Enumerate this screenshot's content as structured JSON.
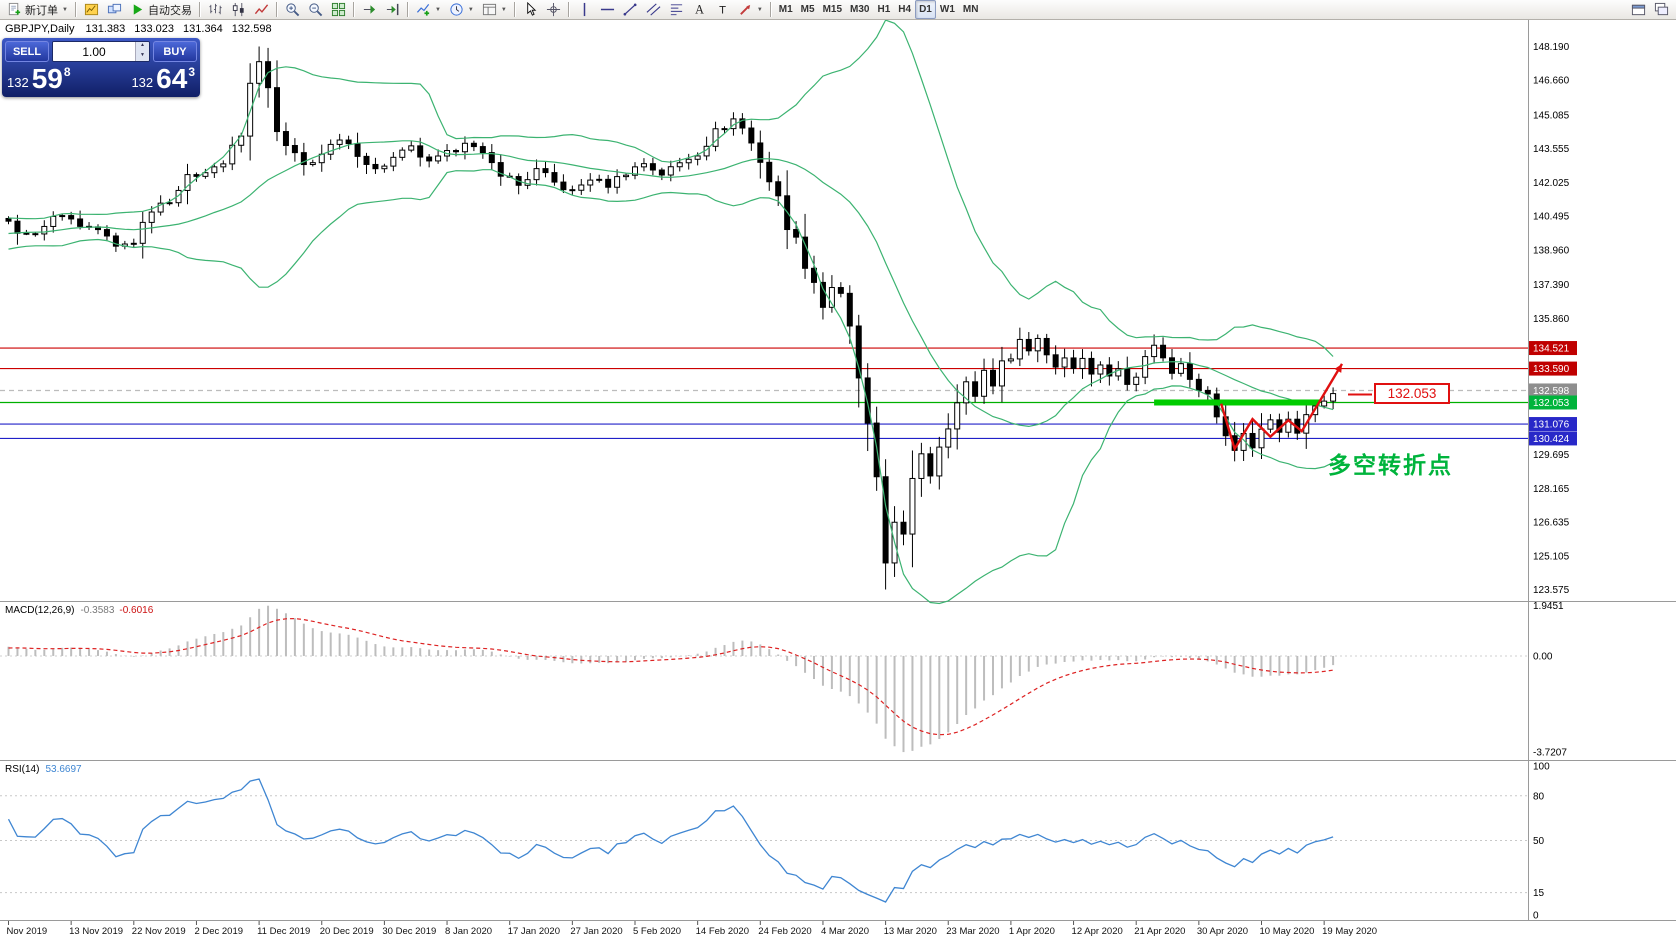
{
  "toolbar": {
    "groups": [
      {
        "items": [
          {
            "name": "new-order-button",
            "icon": "new-order-icon",
            "label": "新订单",
            "caret": true
          }
        ]
      },
      {
        "items": [
          {
            "name": "new-chart-button",
            "icon": "new-chart-icon"
          },
          {
            "name": "profiles-button",
            "icon": "profiles-icon"
          },
          {
            "name": "auto-trading-button",
            "icon": "play-icon",
            "label": "自动交易"
          }
        ]
      },
      {
        "items": [
          {
            "name": "bar-chart-button",
            "icon": "bar-chart-icon"
          },
          {
            "name": "candlestick-chart-button",
            "icon": "candlestick-icon"
          },
          {
            "name": "line-chart-button",
            "icon": "line-chart-icon"
          }
        ]
      },
      {
        "items": [
          {
            "name": "zoom-in-button",
            "icon": "zoom-in-icon"
          },
          {
            "name": "zoom-out-button",
            "icon": "zoom-out-icon"
          },
          {
            "name": "tile-windows-button",
            "icon": "tile-windows-icon"
          }
        ]
      },
      {
        "items": [
          {
            "name": "auto-scroll-button",
            "icon": "auto-scroll-icon"
          },
          {
            "name": "chart-shift-button",
            "icon": "chart-shift-icon"
          }
        ]
      },
      {
        "items": [
          {
            "name": "indicators-button",
            "icon": "indicators-icon",
            "caret": true
          },
          {
            "name": "periods-button",
            "icon": "periods-icon",
            "caret": true
          },
          {
            "name": "templates-button",
            "icon": "templates-icon",
            "caret": true
          }
        ]
      },
      {
        "items": [
          {
            "name": "cursor-button",
            "icon": "cursor-icon"
          },
          {
            "name": "crosshair-button",
            "icon": "crosshair-icon"
          }
        ]
      },
      {
        "items": [
          {
            "name": "vertical-line-button",
            "icon": "vertical-line-icon"
          },
          {
            "name": "horizontal-line-button",
            "icon": "horizontal-line-icon"
          },
          {
            "name": "trendline-button",
            "icon": "trendline-icon"
          },
          {
            "name": "channel-button",
            "icon": "channel-icon"
          },
          {
            "name": "fibonacci-button",
            "icon": "fibonacci-icon"
          },
          {
            "name": "text-button",
            "icon": "text-icon"
          },
          {
            "name": "label-button",
            "icon": "label-icon"
          },
          {
            "name": "arrows-button",
            "icon": "arrows-icon",
            "caret": true
          }
        ]
      },
      {
        "items": [
          {
            "name": "tf-m1-button",
            "label": "M1",
            "tf": true
          },
          {
            "name": "tf-m5-button",
            "label": "M5",
            "tf": true
          },
          {
            "name": "tf-m15-button",
            "label": "M15",
            "tf": true
          },
          {
            "name": "tf-m30-button",
            "label": "M30",
            "tf": true
          },
          {
            "name": "tf-h1-button",
            "label": "H1",
            "tf": true
          },
          {
            "name": "tf-h4-button",
            "label": "H4",
            "tf": true
          },
          {
            "name": "tf-d1-button",
            "label": "D1",
            "tf": true,
            "active": true
          },
          {
            "name": "tf-w1-button",
            "label": "W1",
            "tf": true
          },
          {
            "name": "tf-mn-button",
            "label": "MN",
            "tf": true
          }
        ]
      }
    ],
    "right_items": [
      {
        "name": "new-window-button",
        "icon": "new-window-icon"
      },
      {
        "name": "window-list-button",
        "icon": "window-list-icon"
      }
    ]
  },
  "info_line": {
    "symbol": "GBPJPY,Daily",
    "open": "131.383",
    "high": "133.023",
    "low": "131.364",
    "close": "132.598"
  },
  "one_click": {
    "sell_label": "SELL",
    "buy_label": "BUY",
    "volume": "1.00",
    "sell_price": {
      "small": "132",
      "big": "59",
      "sup": "8"
    },
    "buy_price": {
      "small": "132",
      "big": "64",
      "sup": "3"
    }
  },
  "price_axis": {
    "labels": [
      "148.190",
      "146.660",
      "145.085",
      "143.555",
      "142.025",
      "140.495",
      "138.960",
      "137.390",
      "135.860",
      "129.695",
      "128.165",
      "126.635",
      "125.105",
      "123.575"
    ],
    "markers": [
      {
        "text": "134.521",
        "color": "#c00000"
      },
      {
        "text": "133.590",
        "color": "#c00000"
      },
      {
        "text": "132.598",
        "color": "#8e8e8e"
      },
      {
        "text": "132.053",
        "color": "#00b43c"
      },
      {
        "text": "131.076",
        "color": "#2828c8"
      },
      {
        "text": "130.424",
        "color": "#2828c8"
      }
    ]
  },
  "levels": {
    "hlines": [
      {
        "price": 134.521,
        "color": "#cc0000",
        "dash": false
      },
      {
        "price": 133.59,
        "color": "#cc0000",
        "dash": false
      },
      {
        "price": 132.598,
        "color": "#bcbcbc",
        "dash": true
      },
      {
        "price": 132.053,
        "color": "#00b000",
        "dash": false
      },
      {
        "price": 131.076,
        "color": "#2020c8",
        "dash": false
      },
      {
        "price": 130.424,
        "color": "#2020c8",
        "dash": false
      }
    ],
    "green_segment": {
      "price": 132.053,
      "bar_start": 128,
      "bar_end": 146.5,
      "color": "#00cc00"
    }
  },
  "annotations": {
    "price_flag": {
      "text": "132.053",
      "color": "#e01010"
    },
    "turn_text": {
      "text": "多空转折点",
      "color": "#00b43c"
    },
    "arrow": {
      "color": "#e01010",
      "points": [
        [
          135.5,
          132.0
        ],
        [
          137,
          129.95
        ],
        [
          139,
          131.3
        ],
        [
          141,
          130.5
        ],
        [
          143,
          131.25
        ],
        [
          144.5,
          130.75
        ],
        [
          149,
          133.8
        ]
      ]
    }
  },
  "macd_panel": {
    "label": "MACD(12,26,9)",
    "main_value": "-0.3583",
    "signal_value": "-0.6016",
    "axis_labels": [
      "1.9451",
      "0.00",
      "-3.7207"
    ],
    "axis_values": [
      1.9451,
      0,
      -3.7207
    ]
  },
  "rsi_panel": {
    "label": "RSI(14)",
    "value": "53.6697",
    "axis_labels": [
      "100",
      "80",
      "50",
      "15",
      "0"
    ],
    "axis_values": [
      100,
      80,
      50,
      15,
      0
    ],
    "level_lines": [
      80,
      50,
      15
    ]
  },
  "chart_data": {
    "type": "candlestick",
    "symbol": "GBPJPY",
    "timeframe": "Daily",
    "ohlc_line": {
      "open": 131.383,
      "high": 133.023,
      "low": 131.364,
      "close": 132.598
    },
    "y_range": [
      123.1,
      149.3
    ],
    "visible_high": {
      "price": 148.19,
      "near_date": "11 Dec 2019"
    },
    "visible_low": {
      "price": 123.575,
      "near_date": "13 Mar 2020"
    },
    "bars_per_label": 7,
    "date_labels": [
      "Nov 2019",
      "13 Nov 2019",
      "22 Nov 2019",
      "2 Dec 2019",
      "11 Dec 2019",
      "20 Dec 2019",
      "30 Dec 2019",
      "8 Jan 2020",
      "17 Jan 2020",
      "27 Jan 2020",
      "5 Feb 2020",
      "14 Feb 2020",
      "24 Feb 2020",
      "4 Mar 2020",
      "13 Mar 2020",
      "23 Mar 2020",
      "1 Apr 2020",
      "12 Apr 2020",
      "21 Apr 2020",
      "30 Apr 2020",
      "10 May 2020",
      "19 May 2020"
    ],
    "close_keyframes": [
      [
        0,
        140.2
      ],
      [
        2,
        139.6
      ],
      [
        4,
        140.1
      ],
      [
        6,
        140.6
      ],
      [
        8,
        140.1
      ],
      [
        10,
        139.9
      ],
      [
        12,
        139.1
      ],
      [
        14,
        139.4
      ],
      [
        16,
        140.9
      ],
      [
        18,
        141.3
      ],
      [
        20,
        142.2
      ],
      [
        22,
        142.6
      ],
      [
        24,
        142.9
      ],
      [
        26,
        144.1
      ],
      [
        27,
        146.3
      ],
      [
        28,
        147.6
      ],
      [
        29,
        146.0
      ],
      [
        30,
        144.2
      ],
      [
        31,
        143.6
      ],
      [
        33,
        142.8
      ],
      [
        35,
        143.3
      ],
      [
        37,
        143.9
      ],
      [
        39,
        143.4
      ],
      [
        41,
        142.6
      ],
      [
        43,
        143.1
      ],
      [
        45,
        143.6
      ],
      [
        47,
        142.9
      ],
      [
        49,
        143.3
      ],
      [
        51,
        143.9
      ],
      [
        53,
        143.2
      ],
      [
        55,
        142.5
      ],
      [
        57,
        141.9
      ],
      [
        59,
        142.6
      ],
      [
        61,
        142.0
      ],
      [
        63,
        141.6
      ],
      [
        65,
        142.2
      ],
      [
        67,
        141.9
      ],
      [
        69,
        142.5
      ],
      [
        71,
        142.9
      ],
      [
        73,
        142.4
      ],
      [
        75,
        142.9
      ],
      [
        77,
        143.4
      ],
      [
        79,
        144.3
      ],
      [
        81,
        144.9
      ],
      [
        82,
        144.5
      ],
      [
        84,
        143.1
      ],
      [
        86,
        141.2
      ],
      [
        88,
        139.3
      ],
      [
        90,
        137.6
      ],
      [
        91,
        136.4
      ],
      [
        92,
        137.3
      ],
      [
        93,
        136.7
      ],
      [
        94,
        135.2
      ],
      [
        95,
        133.2
      ],
      [
        96,
        130.8
      ],
      [
        97,
        128.2
      ],
      [
        98,
        124.8
      ],
      [
        99,
        126.8
      ],
      [
        100,
        125.9
      ],
      [
        101,
        128.2
      ],
      [
        102,
        129.8
      ],
      [
        103,
        128.8
      ],
      [
        104,
        130.3
      ],
      [
        105,
        131.2
      ],
      [
        106,
        132.0
      ],
      [
        107,
        132.9
      ],
      [
        108,
        132.4
      ],
      [
        109,
        133.5
      ],
      [
        110,
        132.9
      ],
      [
        111,
        133.7
      ],
      [
        112,
        134.3
      ],
      [
        113,
        134.9
      ],
      [
        114,
        134.4
      ],
      [
        115,
        135.0
      ],
      [
        116,
        134.3
      ],
      [
        117,
        133.7
      ],
      [
        118,
        134.1
      ],
      [
        119,
        133.7
      ],
      [
        120,
        134.0
      ],
      [
        121,
        133.4
      ],
      [
        122,
        133.8
      ],
      [
        123,
        133.2
      ],
      [
        124,
        133.6
      ],
      [
        125,
        133.0
      ],
      [
        126,
        133.4
      ],
      [
        127,
        134.0
      ],
      [
        128,
        134.7
      ],
      [
        129,
        134.0
      ],
      [
        130,
        133.4
      ],
      [
        131,
        133.9
      ],
      [
        132,
        133.3
      ],
      [
        133,
        132.8
      ],
      [
        134,
        132.3
      ],
      [
        135,
        131.5
      ],
      [
        136,
        130.4
      ],
      [
        137,
        129.9
      ],
      [
        138,
        130.7
      ],
      [
        139,
        130.0
      ],
      [
        140,
        130.7
      ],
      [
        141,
        131.3
      ],
      [
        142,
        130.8
      ],
      [
        143,
        131.2
      ],
      [
        144,
        130.7
      ],
      [
        145,
        131.3
      ],
      [
        146,
        131.9
      ],
      [
        147,
        132.3
      ],
      [
        148,
        132.6
      ]
    ],
    "indicators": {
      "bollinger": {
        "period": 20,
        "deviation": 2
      },
      "macd": {
        "fast": 12,
        "slow": 26,
        "signal": 9,
        "main": -0.3583,
        "signal_value": -0.6016,
        "scale_max": 1.9451,
        "scale_min": -3.7207
      },
      "rsi": {
        "period": 14,
        "value": 53.6697
      }
    },
    "levels": [
      134.521,
      133.59,
      132.053,
      131.076,
      130.424
    ]
  }
}
